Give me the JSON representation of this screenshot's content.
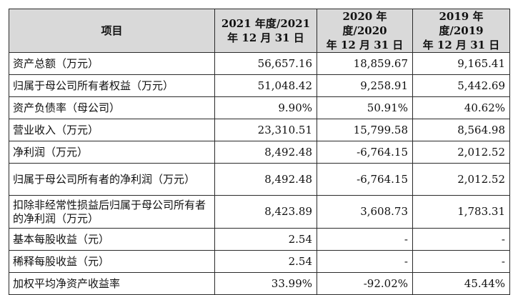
{
  "table": {
    "headers": [
      {
        "line1": "项目",
        "line2": ""
      },
      {
        "line1": "2021 年度/2021",
        "line2": "年 12 月 31 日"
      },
      {
        "line1": "2020 年度/2020",
        "line2": "年 12 月 31 日"
      },
      {
        "line1": "2019 年度/2019",
        "line2": "年 12 月 31 日"
      }
    ],
    "rows": [
      {
        "label": "资产总额（万元）",
        "v2021": "56,657.16",
        "v2020": "18,859.67",
        "v2019": "9,165.41"
      },
      {
        "label": "归属于母公司所有者权益（万元）",
        "v2021": "51,048.42",
        "v2020": "9,258.91",
        "v2019": "5,442.69"
      },
      {
        "label": "资产负债率（母公司）",
        "v2021": "9.90%",
        "v2020": "50.91%",
        "v2019": "40.62%"
      },
      {
        "label": "营业收入（万元）",
        "v2021": "23,310.51",
        "v2020": "15,799.58",
        "v2019": "8,564.98"
      },
      {
        "label": "净利润（万元）",
        "v2021": "8,492.48",
        "v2020": "-6,764.15",
        "v2019": "2,012.52"
      },
      {
        "label": "归属于母公司所有者的净利润（万元）",
        "v2021": "8,492.48",
        "v2020": "-6,764.15",
        "v2019": "2,012.52"
      },
      {
        "label": "扣除非经常性损益后归属于母公司所有者的净利润（万元）",
        "v2021": "8,423.89",
        "v2020": "3,608.73",
        "v2019": "1,783.31"
      },
      {
        "label": "基本每股收益（元）",
        "v2021": "2.54",
        "v2020": "-",
        "v2019": "-"
      },
      {
        "label": "稀释每股收益（元）",
        "v2021": "2.54",
        "v2020": "-",
        "v2019": "-"
      },
      {
        "label": "加权平均净资产收益率",
        "v2021": "33.99%",
        "v2020": "-92.02%",
        "v2019": "45.44%"
      }
    ]
  }
}
